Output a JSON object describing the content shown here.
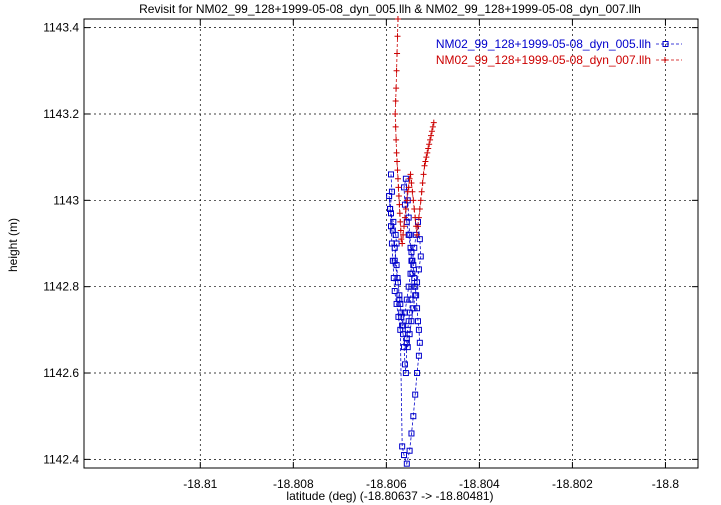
{
  "chart_data": {
    "type": "line",
    "title": "Revisit for NM02_99_128+1999-05-08_dyn_005.llh & NM02_99_128+1999-05-08_dyn_007.llh",
    "xlabel": "latitude (deg) (-18.80637 -> -18.80481)",
    "ylabel": "height (m)",
    "xlim": [
      -18.8125,
      -18.7993
    ],
    "ylim": [
      1142.38,
      1143.42
    ],
    "xticks": [
      -18.81,
      -18.808,
      -18.806,
      -18.804,
      -18.802,
      -18.8
    ],
    "xtick_labels": [
      "-18.81",
      "-18.808",
      "-18.806",
      "-18.804",
      "-18.802",
      "-18.8"
    ],
    "yticks": [
      1142.4,
      1142.6,
      1142.8,
      1143.0,
      1143.2,
      1143.4
    ],
    "ytick_labels": [
      "1142.4",
      "1142.6",
      "1142.8",
      "1143",
      "1143.2",
      "1143.4"
    ],
    "grid": true,
    "legend_position": "top-right",
    "series": [
      {
        "name": "NM02_99_128+1999-05-08_dyn_005.llh",
        "color": "#0000cc",
        "marker": "square",
        "x": [
          -18.8059,
          -18.80588,
          -18.80592,
          -18.80585,
          -18.8058,
          -18.80578,
          -18.80582,
          -18.80576,
          -18.80572,
          -18.8057,
          -18.80568,
          -18.80566,
          -18.80564,
          -18.80562,
          -18.8056,
          -18.80558,
          -18.80556,
          -18.80554,
          -18.80552,
          -18.8055,
          -18.80548,
          -18.80546,
          -18.80544,
          -18.80546,
          -18.80548,
          -18.80552,
          -18.80556,
          -18.8056,
          -18.80562,
          -18.80558,
          -18.80554,
          -18.80552,
          -18.8055,
          -18.80546,
          -18.80542,
          -18.8054,
          -18.80538,
          -18.80536,
          -18.80534,
          -18.80532,
          -18.8053,
          -18.80528,
          -18.8053,
          -18.80534,
          -18.80538,
          -18.80542,
          -18.80546,
          -18.8055,
          -18.80556,
          -18.80562,
          -18.80566,
          -18.8057,
          -18.80574,
          -18.80578,
          -18.80582,
          -18.80584,
          -18.80586,
          -18.80588,
          -18.8059,
          -18.80592,
          -18.80594,
          -18.8059,
          -18.80586,
          -18.80582,
          -18.80578,
          -18.80575,
          -18.80572,
          -18.80568,
          -18.80564,
          -18.8056,
          -18.80556,
          -18.80552,
          -18.80548,
          -18.80544,
          -18.8054,
          -18.80536,
          -18.80532,
          -18.80528,
          -18.80526,
          -18.8053,
          -18.80534,
          -18.80538,
          -18.80542,
          -18.80546,
          -18.8055,
          -18.80554,
          -18.80556
        ],
        "y": [
          1143.06,
          1143.02,
          1142.98,
          1142.95,
          1142.92,
          1142.9,
          1142.86,
          1142.82,
          1142.78,
          1142.76,
          1142.73,
          1142.71,
          1142.69,
          1142.66,
          1142.62,
          1142.6,
          1142.67,
          1142.7,
          1142.72,
          1142.74,
          1142.77,
          1142.8,
          1142.83,
          1142.86,
          1142.89,
          1142.92,
          1142.95,
          1142.99,
          1143.03,
          1143.05,
          1143.0,
          1142.96,
          1142.92,
          1142.88,
          1142.85,
          1142.82,
          1142.8,
          1142.78,
          1142.75,
          1142.72,
          1142.7,
          1142.67,
          1142.64,
          1142.6,
          1142.55,
          1142.5,
          1142.46,
          1142.42,
          1142.39,
          1142.41,
          1142.43,
          1142.7,
          1142.73,
          1142.76,
          1142.79,
          1142.82,
          1142.86,
          1142.9,
          1142.94,
          1142.98,
          1143.01,
          1142.97,
          1142.93,
          1142.89,
          1142.85,
          1142.81,
          1142.77,
          1142.74,
          1142.71,
          1142.74,
          1142.77,
          1142.8,
          1142.83,
          1142.86,
          1142.89,
          1142.92,
          1142.95,
          1142.91,
          1142.87,
          1142.84,
          1142.81,
          1142.78,
          1142.75,
          1142.72,
          1142.69,
          1142.66,
          1142.68
        ]
      },
      {
        "name": "NM02_99_128+1999-05-08_dyn_007.llh",
        "color": "#cc0000",
        "marker": "plus",
        "x": [
          -18.80575,
          -18.80576,
          -18.80577,
          -18.80578,
          -18.80579,
          -18.8058,
          -18.80581,
          -18.8058,
          -18.80579,
          -18.80578,
          -18.80577,
          -18.80576,
          -18.80575,
          -18.80574,
          -18.80573,
          -18.80572,
          -18.80571,
          -18.8057,
          -18.80569,
          -18.80568,
          -18.80566,
          -18.80564,
          -18.80562,
          -18.8056,
          -18.80558,
          -18.80556,
          -18.80554,
          -18.80552,
          -18.8055,
          -18.80548,
          -18.80546,
          -18.80544,
          -18.80542,
          -18.8054,
          -18.80538,
          -18.80536,
          -18.80534,
          -18.80532,
          -18.8053,
          -18.80528,
          -18.80526,
          -18.80524,
          -18.80522,
          -18.8052,
          -18.80518,
          -18.80516,
          -18.80514,
          -18.80512,
          -18.8051,
          -18.80508,
          -18.80506,
          -18.80504,
          -18.80502,
          -18.805,
          -18.80498
        ],
        "y": [
          1143.42,
          1143.38,
          1143.34,
          1143.3,
          1143.26,
          1143.23,
          1143.2,
          1143.17,
          1143.14,
          1143.11,
          1143.09,
          1143.07,
          1143.05,
          1143.03,
          1143.01,
          1142.99,
          1142.97,
          1142.95,
          1142.93,
          1142.91,
          1142.9,
          1142.92,
          1142.94,
          1142.96,
          1142.98,
          1143.0,
          1143.02,
          1143.03,
          1143.05,
          1143.06,
          1143.04,
          1143.02,
          1143.0,
          1142.98,
          1142.96,
          1142.94,
          1142.92,
          1142.94,
          1142.96,
          1142.98,
          1143.0,
          1143.02,
          1143.04,
          1143.06,
          1143.08,
          1143.09,
          1143.1,
          1143.11,
          1143.12,
          1143.13,
          1143.14,
          1143.15,
          1143.16,
          1143.17,
          1143.18
        ]
      }
    ]
  }
}
